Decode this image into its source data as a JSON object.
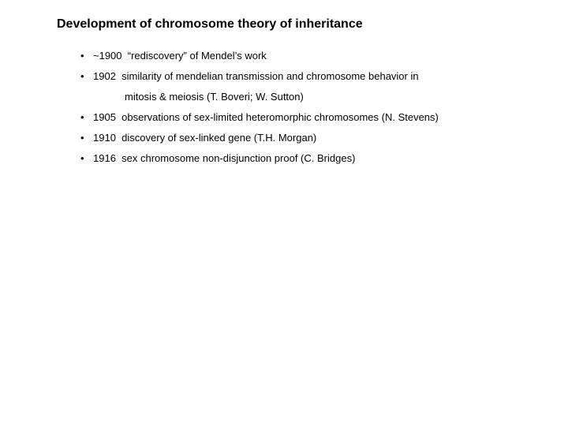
{
  "title": "Development of chromosome theory of inheritance",
  "bullet": "•",
  "items": [
    {
      "year": "~1900",
      "text": "“rediscovery” of Mendel’s work"
    },
    {
      "year": " 1902",
      "text": "similarity of mendelian transmission and chromosome behavior in",
      "cont": "mitosis & meiosis (T. Boveri; W. Sutton)"
    },
    {
      "year": " 1905",
      "text": "observations of sex-limited heteromorphic chromosomes (N. Stevens)"
    },
    {
      "year": " 1910",
      "text": "discovery of sex-linked gene (T.H. Morgan)"
    },
    {
      "year": " 1916",
      "text": "sex chromosome non-disjunction proof (C. Bridges)"
    }
  ]
}
